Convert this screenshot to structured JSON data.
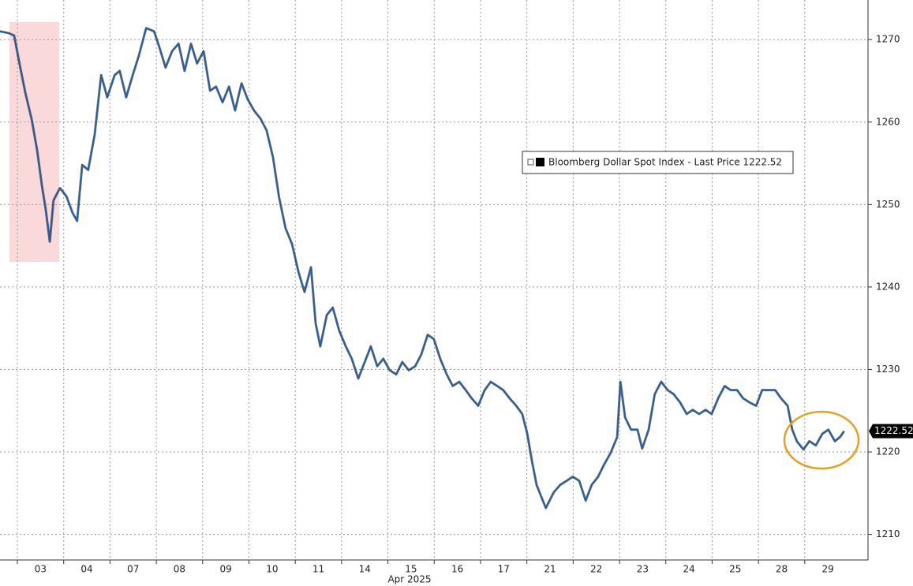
{
  "chart_data": {
    "type": "line",
    "categories": [
      "03",
      "04",
      "07",
      "08",
      "09",
      "10",
      "11",
      "14",
      "15",
      "16",
      "17",
      "21",
      "22",
      "23",
      "24",
      "25",
      "28",
      "29"
    ],
    "x_label": "Apr 2025",
    "xlim": [
      -0.375,
      18.366
    ],
    "ylim": [
      1206.9,
      1274.8
    ],
    "yticks": [
      1210,
      1220,
      1230,
      1240,
      1250,
      1260,
      1270
    ],
    "grid": true,
    "legend": "top-right",
    "last_value": 1222.52,
    "series": [
      {
        "name": "Bloomberg Dollar Spot Index - Last Price 1222.52",
        "color": "#1f5fa6",
        "x": [
          -0.375,
          -0.2,
          -0.07,
          0.05,
          0.17,
          0.31,
          0.43,
          0.53,
          0.61,
          0.7,
          0.78,
          0.92,
          1.06,
          1.19,
          1.29,
          1.4,
          1.53,
          1.67,
          1.81,
          1.94,
          2.1,
          2.21,
          2.35,
          2.49,
          2.62,
          2.78,
          2.95,
          3.07,
          3.2,
          3.34,
          3.48,
          3.61,
          3.75,
          3.88,
          4.02,
          4.16,
          4.29,
          4.43,
          4.57,
          4.7,
          4.84,
          4.97,
          5.11,
          5.25,
          5.38,
          5.52,
          5.65,
          5.79,
          5.93,
          6.07,
          6.2,
          6.34,
          6.44,
          6.54,
          6.68,
          6.81,
          6.95,
          7.09,
          7.22,
          7.36,
          7.5,
          7.63,
          7.77,
          7.9,
          8.04,
          8.18,
          8.31,
          8.45,
          8.59,
          8.72,
          8.86,
          8.99,
          9.13,
          9.27,
          9.4,
          9.54,
          9.68,
          9.81,
          9.95,
          10.09,
          10.22,
          10.36,
          10.49,
          10.63,
          10.77,
          10.9,
          11.01,
          11.11,
          11.21,
          11.31,
          11.41,
          11.58,
          11.72,
          11.86,
          11.99,
          12.13,
          12.27,
          12.4,
          12.54,
          12.67,
          12.81,
          12.95,
          13.02,
          13.12,
          13.25,
          13.39,
          13.49,
          13.63,
          13.76,
          13.9,
          14.04,
          14.17,
          14.31,
          14.45,
          14.58,
          14.72,
          14.86,
          14.99,
          15.13,
          15.27,
          15.4,
          15.54,
          15.67,
          15.81,
          15.95,
          16.08,
          16.22,
          16.36,
          16.49,
          16.63,
          16.73,
          16.83,
          16.97,
          17.1,
          17.24,
          17.38,
          17.51,
          17.65,
          17.76,
          17.85
        ],
        "values": [
          1271.0,
          1270.8,
          1270.5,
          1267.0,
          1263.6,
          1260.3,
          1256.5,
          1252.3,
          1249.5,
          1245.5,
          1250.5,
          1252.0,
          1251.0,
          1249.0,
          1248.0,
          1254.8,
          1254.2,
          1258.5,
          1265.7,
          1263.0,
          1265.7,
          1266.2,
          1263.0,
          1265.7,
          1268.0,
          1271.4,
          1271.0,
          1269.0,
          1266.6,
          1268.6,
          1269.5,
          1266.2,
          1269.5,
          1267.1,
          1268.6,
          1263.8,
          1264.3,
          1262.4,
          1264.3,
          1261.4,
          1264.7,
          1262.8,
          1261.4,
          1260.4,
          1259.0,
          1255.7,
          1250.9,
          1247.1,
          1245.2,
          1241.8,
          1239.4,
          1242.4,
          1235.6,
          1232.8,
          1236.6,
          1237.5,
          1234.7,
          1232.8,
          1231.3,
          1228.9,
          1230.9,
          1232.8,
          1230.4,
          1231.3,
          1229.9,
          1229.4,
          1230.9,
          1229.9,
          1230.4,
          1231.8,
          1234.2,
          1233.7,
          1231.3,
          1229.4,
          1228.0,
          1228.5,
          1227.5,
          1226.5,
          1225.6,
          1227.5,
          1228.5,
          1228.0,
          1227.5,
          1226.5,
          1225.6,
          1224.6,
          1222.2,
          1218.9,
          1216.0,
          1214.6,
          1213.2,
          1215.1,
          1216.0,
          1216.5,
          1217.0,
          1216.5,
          1214.1,
          1216.0,
          1217.0,
          1218.5,
          1219.9,
          1221.8,
          1228.5,
          1224.2,
          1222.7,
          1222.7,
          1220.4,
          1222.7,
          1227.0,
          1228.5,
          1227.5,
          1227.0,
          1226.0,
          1224.6,
          1225.1,
          1224.6,
          1225.1,
          1224.6,
          1226.5,
          1228.0,
          1227.5,
          1227.5,
          1226.5,
          1226.0,
          1225.6,
          1227.5,
          1227.5,
          1227.5,
          1226.5,
          1225.6,
          1222.7,
          1221.3,
          1220.3,
          1221.3,
          1220.8,
          1222.2,
          1222.7,
          1221.3,
          1221.8,
          1222.52
        ]
      }
    ]
  }
}
